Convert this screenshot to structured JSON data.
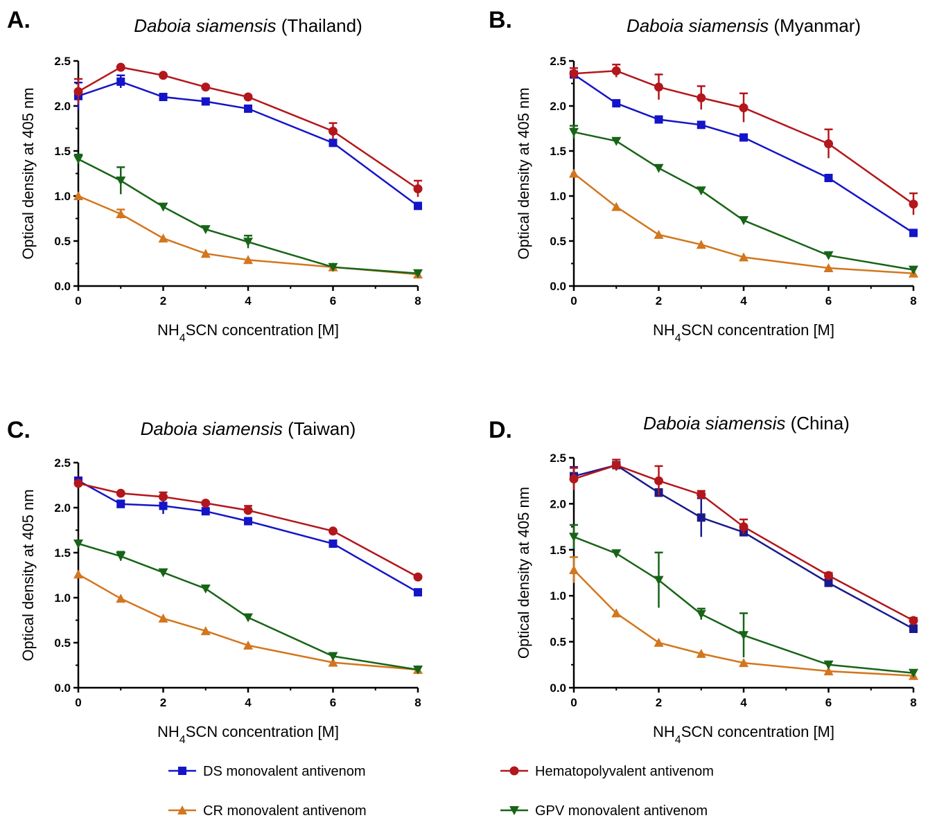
{
  "chart_data": [
    {
      "panel": "A.",
      "type": "line",
      "title_italic": "Daboia siamensis",
      "title_rest": " (Thailand)",
      "xlabel_pre": "NH",
      "xlabel_sub": "4",
      "xlabel_post": "SCN concentration [M]",
      "ylabel": "Optical density at 405 nm",
      "xlim": [
        0,
        8
      ],
      "ylim": [
        0,
        2.5
      ],
      "xticks": [
        "0",
        "2",
        "4",
        "6",
        "8"
      ],
      "yticks": [
        "0.0",
        "0.5",
        "1.0",
        "1.5",
        "2.0",
        "2.5"
      ],
      "x": [
        0,
        1,
        2,
        3,
        4,
        6,
        8
      ],
      "series": [
        {
          "name": "DS monovalent antivenom",
          "color": "#1414c8",
          "marker": "square",
          "values": [
            2.11,
            2.27,
            2.1,
            2.05,
            1.97,
            1.59,
            0.89
          ],
          "errors": [
            0.15,
            0.07,
            0.03,
            0.03,
            0.03,
            0.03,
            0.03
          ]
        },
        {
          "name": "Hematopolyvalent antivenom",
          "color": "#b3161b",
          "marker": "circle",
          "values": [
            2.16,
            2.43,
            2.34,
            2.21,
            2.1,
            1.72,
            1.08
          ],
          "errors": [
            0.14,
            0.02,
            0.02,
            0.02,
            0.02,
            0.09,
            0.09
          ]
        },
        {
          "name": "CR monovalent antivenom",
          "color": "#d3761d",
          "marker": "triangle-up",
          "values": [
            1.0,
            0.8,
            0.53,
            0.36,
            0.29,
            0.21,
            0.13
          ],
          "errors": [
            0.02,
            0.05,
            0.02,
            0.02,
            0.02,
            0.02,
            0.02
          ]
        },
        {
          "name": "GPV monovalent antivenom",
          "color": "#176417",
          "marker": "triangle-down",
          "values": [
            1.41,
            1.17,
            0.88,
            0.63,
            0.49,
            0.21,
            0.14
          ],
          "errors": [
            0.05,
            0.15,
            0.02,
            0.02,
            0.07,
            0.02,
            0.02
          ]
        }
      ]
    },
    {
      "panel": "B.",
      "type": "line",
      "title_italic": "Daboia siamensis",
      "title_rest": " (Myanmar)",
      "xlabel_pre": "NH",
      "xlabel_sub": "4",
      "xlabel_post": "SCN concentration [M]",
      "ylabel": "Optical density at 405 nm",
      "xlim": [
        0,
        8
      ],
      "ylim": [
        0,
        2.5
      ],
      "xticks": [
        "0",
        "2",
        "4",
        "6",
        "8"
      ],
      "yticks": [
        "0.0",
        "0.5",
        "1.0",
        "1.5",
        "2.0",
        "2.5"
      ],
      "x": [
        0,
        1,
        2,
        3,
        4,
        6,
        8
      ],
      "series": [
        {
          "name": "DS monovalent antivenom",
          "color": "#1414c8",
          "marker": "square",
          "values": [
            2.35,
            2.03,
            1.85,
            1.79,
            1.65,
            1.2,
            0.59
          ],
          "errors": [
            0.03,
            0.02,
            0.02,
            0.02,
            0.02,
            0.02,
            0.02
          ]
        },
        {
          "name": "Hematopolyvalent antivenom",
          "color": "#b3161b",
          "marker": "circle",
          "values": [
            2.36,
            2.39,
            2.21,
            2.09,
            1.98,
            1.58,
            0.91
          ],
          "errors": [
            0.06,
            0.07,
            0.14,
            0.13,
            0.16,
            0.16,
            0.12
          ]
        },
        {
          "name": "CR monovalent antivenom",
          "color": "#d3761d",
          "marker": "triangle-up",
          "values": [
            1.25,
            0.88,
            0.57,
            0.46,
            0.32,
            0.2,
            0.14
          ],
          "errors": [
            0.02,
            0.02,
            0.02,
            0.02,
            0.02,
            0.02,
            0.02
          ]
        },
        {
          "name": "GPV monovalent antivenom",
          "color": "#176417",
          "marker": "triangle-down",
          "values": [
            1.71,
            1.61,
            1.31,
            1.06,
            0.73,
            0.34,
            0.18
          ],
          "errors": [
            0.07,
            0.03,
            0.02,
            0.02,
            0.02,
            0.02,
            0.02
          ]
        }
      ]
    },
    {
      "panel": "C.",
      "type": "line",
      "title_italic": "Daboia siamensis",
      "title_rest": " (Taiwan)",
      "xlabel_pre": "NH",
      "xlabel_sub": "4",
      "xlabel_post": "SCN concentration [M]",
      "ylabel": "Optical density at 405 nm",
      "xlim": [
        0,
        8
      ],
      "ylim": [
        0,
        2.5
      ],
      "xticks": [
        "0",
        "2",
        "4",
        "6",
        "8"
      ],
      "yticks": [
        "0.0",
        "0.5",
        "1.0",
        "1.5",
        "2.0",
        "2.5"
      ],
      "x": [
        0,
        1,
        2,
        3,
        4,
        6,
        8
      ],
      "series": [
        {
          "name": "DS monovalent antivenom",
          "color": "#1414c8",
          "marker": "square",
          "values": [
            2.3,
            2.04,
            2.02,
            1.96,
            1.85,
            1.6,
            1.06
          ],
          "errors": [
            0.02,
            0.04,
            0.09,
            0.02,
            0.02,
            0.02,
            0.02
          ]
        },
        {
          "name": "Hematopolyvalent antivenom",
          "color": "#b3161b",
          "marker": "circle",
          "values": [
            2.27,
            2.16,
            2.12,
            2.05,
            1.97,
            1.74,
            1.23
          ],
          "errors": [
            0.02,
            0.02,
            0.05,
            0.02,
            0.05,
            0.02,
            0.02
          ]
        },
        {
          "name": "CR monovalent antivenom",
          "color": "#d3761d",
          "marker": "triangle-up",
          "values": [
            1.26,
            0.99,
            0.77,
            0.63,
            0.47,
            0.28,
            0.2
          ],
          "errors": [
            0.02,
            0.02,
            0.02,
            0.02,
            0.02,
            0.02,
            0.02
          ]
        },
        {
          "name": "GPV monovalent antivenom",
          "color": "#176417",
          "marker": "triangle-down",
          "values": [
            1.6,
            1.46,
            1.28,
            1.1,
            0.78,
            0.35,
            0.2
          ],
          "errors": [
            0.02,
            0.05,
            0.02,
            0.02,
            0.02,
            0.02,
            0.02
          ]
        }
      ]
    },
    {
      "panel": "D.",
      "type": "line",
      "title_italic": "Daboia siamensis",
      "title_rest": " (China)",
      "xlabel_pre": "NH",
      "xlabel_sub": "4",
      "xlabel_post": "SCN concentration [M]",
      "ylabel": "Optical density at 405 nm",
      "xlim": [
        0,
        8
      ],
      "ylim": [
        0,
        2.5
      ],
      "xticks": [
        "0",
        "2",
        "4",
        "6",
        "8"
      ],
      "yticks": [
        "0.0",
        "0.5",
        "1.0",
        "1.5",
        "2.0",
        "2.5"
      ],
      "x": [
        0,
        1,
        2,
        3,
        4,
        6,
        8
      ],
      "series": [
        {
          "name": "DS monovalent antivenom",
          "color": "#1a1a8c",
          "marker": "square",
          "values": [
            2.3,
            2.42,
            2.12,
            1.85,
            1.69,
            1.14,
            0.64
          ],
          "errors": [
            0.1,
            0.03,
            0.04,
            0.21,
            0.04,
            0.04,
            0.04
          ]
        },
        {
          "name": "Hematopolyvalent antivenom",
          "color": "#b3161b",
          "marker": "circle",
          "values": [
            2.27,
            2.42,
            2.25,
            2.1,
            1.75,
            1.22,
            0.73
          ],
          "errors": [
            0.12,
            0.06,
            0.16,
            0.04,
            0.08,
            0.03,
            0.03
          ]
        },
        {
          "name": "CR monovalent antivenom",
          "color": "#d3761d",
          "marker": "triangle-up",
          "values": [
            1.28,
            0.81,
            0.49,
            0.37,
            0.27,
            0.18,
            0.13
          ],
          "errors": [
            0.14,
            0.02,
            0.02,
            0.02,
            0.02,
            0.02,
            0.02
          ]
        },
        {
          "name": "GPV monovalent antivenom",
          "color": "#176417",
          "marker": "triangle-down",
          "values": [
            1.64,
            1.46,
            1.17,
            0.8,
            0.57,
            0.25,
            0.16
          ],
          "errors": [
            0.13,
            0.02,
            0.3,
            0.06,
            0.24,
            0.02,
            0.02
          ]
        }
      ]
    }
  ],
  "legend": [
    {
      "label": "DS monovalent antivenom",
      "color": "#1414c8",
      "marker": "square"
    },
    {
      "label": "Hematopolyvalent antivenom",
      "color": "#b3161b",
      "marker": "circle"
    },
    {
      "label": "CR monovalent antivenom",
      "color": "#d3761d",
      "marker": "triangle-up"
    },
    {
      "label": "GPV monovalent antivenom",
      "color": "#176417",
      "marker": "triangle-down"
    }
  ]
}
